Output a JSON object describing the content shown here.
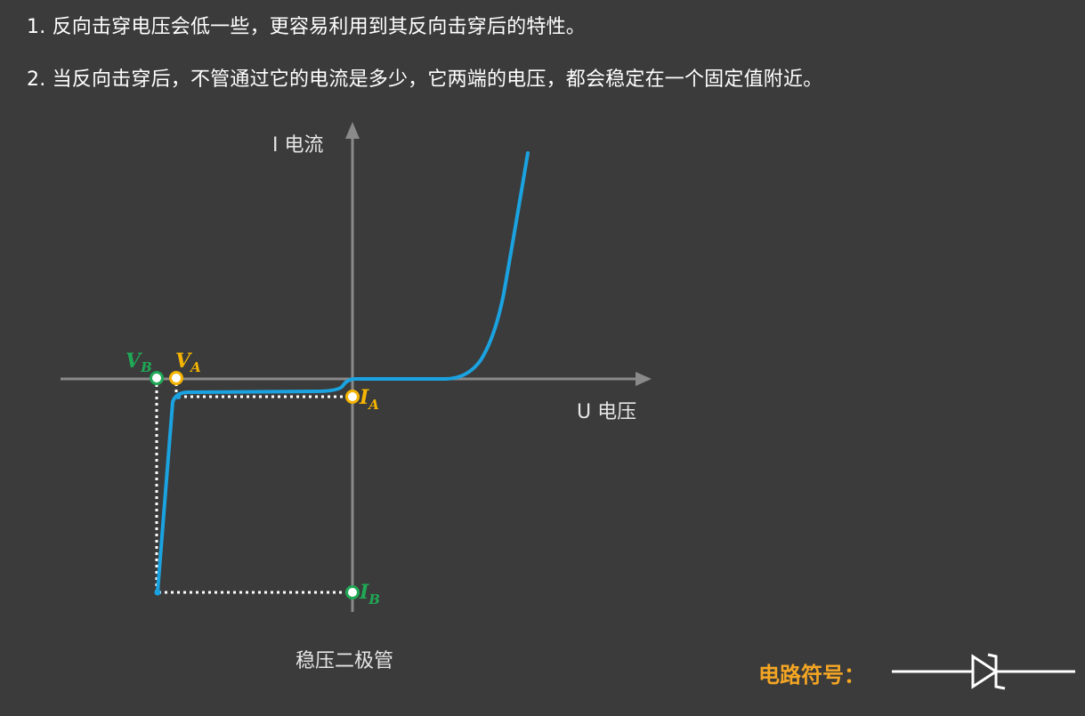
{
  "points": [
    "1. 反向击穿电压会低一些，更容易利用到其反向击穿后的特性。",
    "2. 当反向击穿后，不管通过它的电流是多少，它两端的电压，都会稳定在一个固定值附近。"
  ],
  "diagram": {
    "y_axis_label": "I 电流",
    "x_axis_label": "U 电压",
    "caption": "稳压二极管",
    "markers": [
      {
        "id": "VB",
        "main": "V",
        "sub": "B",
        "color": "#1fa855"
      },
      {
        "id": "VA",
        "main": "V",
        "sub": "A",
        "color": "#f5b400"
      },
      {
        "id": "IA",
        "main": "I",
        "sub": "A",
        "color": "#f5b400"
      },
      {
        "id": "IB",
        "main": "I",
        "sub": "B",
        "color": "#1fa855"
      }
    ],
    "colors": {
      "axis": "#8a8a8a",
      "curve": "#1aa3e0",
      "guide": "#ffffff",
      "green": "#1fa855",
      "yellow": "#f5b400"
    }
  },
  "symbol": {
    "label": "电路符号：",
    "icon": "zener-diode-icon"
  }
}
